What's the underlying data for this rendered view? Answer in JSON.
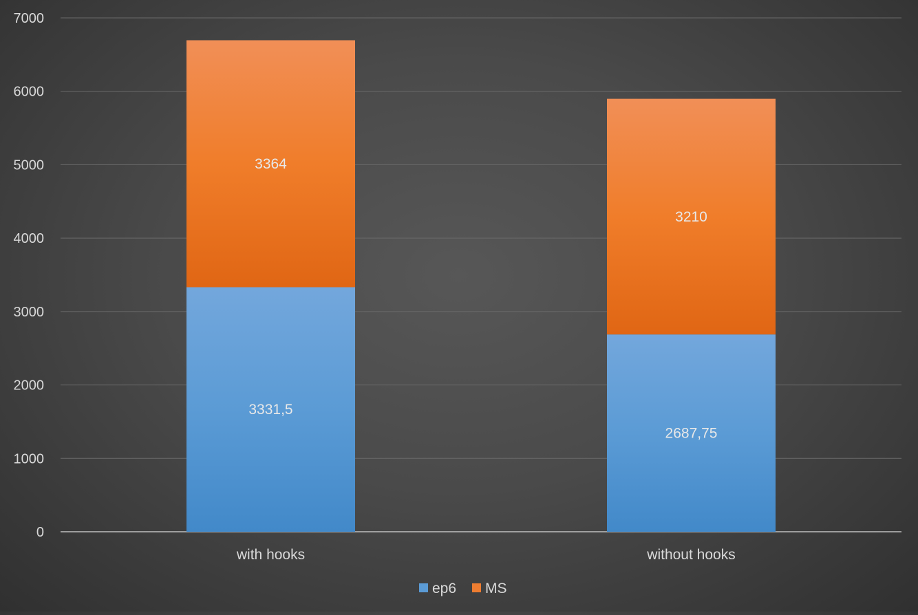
{
  "chart_data": {
    "type": "bar",
    "stacked": true,
    "categories": [
      "with hooks",
      "without hooks"
    ],
    "series": [
      {
        "name": "ep6",
        "values": [
          3331.5,
          2687.75
        ],
        "labels": [
          "3331,5",
          "2687,75"
        ],
        "color": "#5b9bd5"
      },
      {
        "name": "MS",
        "values": [
          3364,
          3210
        ],
        "labels": [
          "3364",
          "3210"
        ],
        "color": "#ed7d31"
      }
    ],
    "ylim": [
      0,
      7000
    ],
    "yticks": [
      "0",
      "1000",
      "2000",
      "3000",
      "4000",
      "5000",
      "6000",
      "7000"
    ],
    "ytick_values": [
      0,
      1000,
      2000,
      3000,
      4000,
      5000,
      6000,
      7000
    ],
    "grid": true,
    "legend_position": "bottom",
    "background": "#4a4a4a"
  }
}
